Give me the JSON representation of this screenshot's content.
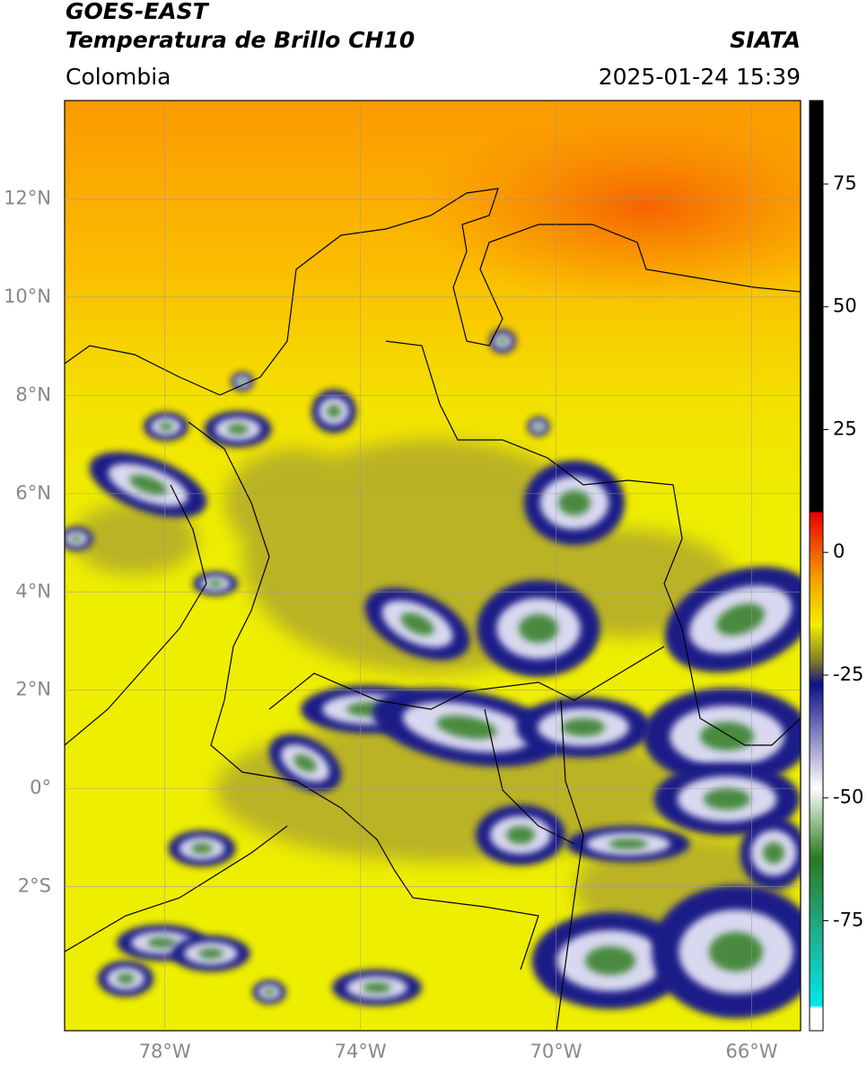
{
  "header": {
    "title": "GOES-EAST",
    "subtitle": "Temperatura de Brillo CH10",
    "source": "SIATA",
    "region": "Colombia",
    "datetime": "2025-01-24 15:39"
  },
  "map": {
    "xlim": [
      -80.05,
      -65
    ],
    "ylim": [
      -4.93,
      14
    ],
    "grid": true,
    "xticks": [
      {
        "value": -78,
        "label": "78°W"
      },
      {
        "value": -74,
        "label": "74°W"
      },
      {
        "value": -70,
        "label": "70°W"
      },
      {
        "value": -66,
        "label": "66°W"
      }
    ],
    "yticks": [
      {
        "value": 12,
        "label": "12°N"
      },
      {
        "value": 10,
        "label": "10°N"
      },
      {
        "value": 8,
        "label": "8°N"
      },
      {
        "value": 6,
        "label": "6°N"
      },
      {
        "value": 4,
        "label": "4°N"
      },
      {
        "value": 2,
        "label": "2°N"
      },
      {
        "value": 0,
        "label": "0°"
      },
      {
        "value": -2,
        "label": "2°S"
      }
    ]
  },
  "colorbar": {
    "lim": [
      -97.4,
      92
    ],
    "ticks": [
      75,
      50,
      25,
      0,
      -25,
      -50,
      -75
    ]
  }
}
